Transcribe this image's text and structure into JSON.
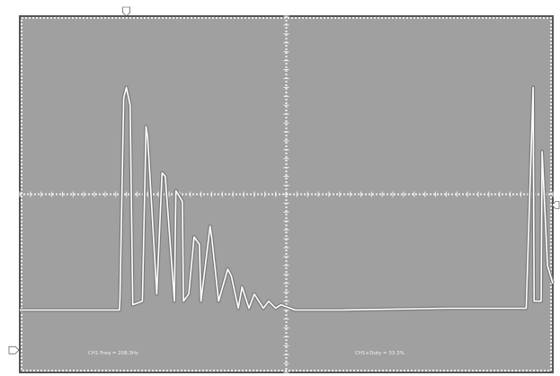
{
  "chart_data": {
    "type": "line",
    "title": "",
    "xlabel": "",
    "ylabel": "",
    "x_divisions": 2,
    "y_divisions": 2,
    "xlim": [
      0,
      1
    ],
    "ylim": [
      0,
      1
    ],
    "grid": true,
    "series": [
      {
        "name": "",
        "x": [
          0.0,
          0.187,
          0.188,
          0.195,
          0.2,
          0.207,
          0.212,
          0.23,
          0.237,
          0.24,
          0.257,
          0.267,
          0.273,
          0.29,
          0.293,
          0.305,
          0.307,
          0.317,
          0.327,
          0.337,
          0.34,
          0.357,
          0.36,
          0.373,
          0.39,
          0.397,
          0.41,
          0.417,
          0.43,
          0.44,
          0.457,
          0.467,
          0.48,
          0.49,
          0.517,
          0.6,
          0.8,
          0.95,
          0.963,
          0.965,
          0.978,
          0.98,
          0.99,
          1.0
        ],
        "y": [
          0.175,
          0.175,
          0.21,
          0.77,
          0.8,
          0.75,
          0.19,
          0.2,
          0.69,
          0.66,
          0.22,
          0.56,
          0.55,
          0.2,
          0.51,
          0.48,
          0.2,
          0.22,
          0.38,
          0.36,
          0.2,
          0.41,
          0.38,
          0.2,
          0.29,
          0.27,
          0.18,
          0.24,
          0.18,
          0.22,
          0.18,
          0.2,
          0.18,
          0.19,
          0.175,
          0.175,
          0.18,
          0.18,
          0.8,
          0.2,
          0.2,
          0.62,
          0.3,
          0.25
        ]
      }
    ],
    "measurements": [
      {
        "text": "CH1 Freq = 208.3Hz"
      },
      {
        "text": "CH1+Duty = 33.3%"
      }
    ],
    "markers": {
      "trigger_position": 0.2,
      "ch1_level": 0.06,
      "trigger_level": 0.5
    }
  },
  "colors": {
    "screen": "#a0a0a0",
    "grid": "#f0f0f0",
    "trace": "#ffffff",
    "frame": "#555555"
  }
}
